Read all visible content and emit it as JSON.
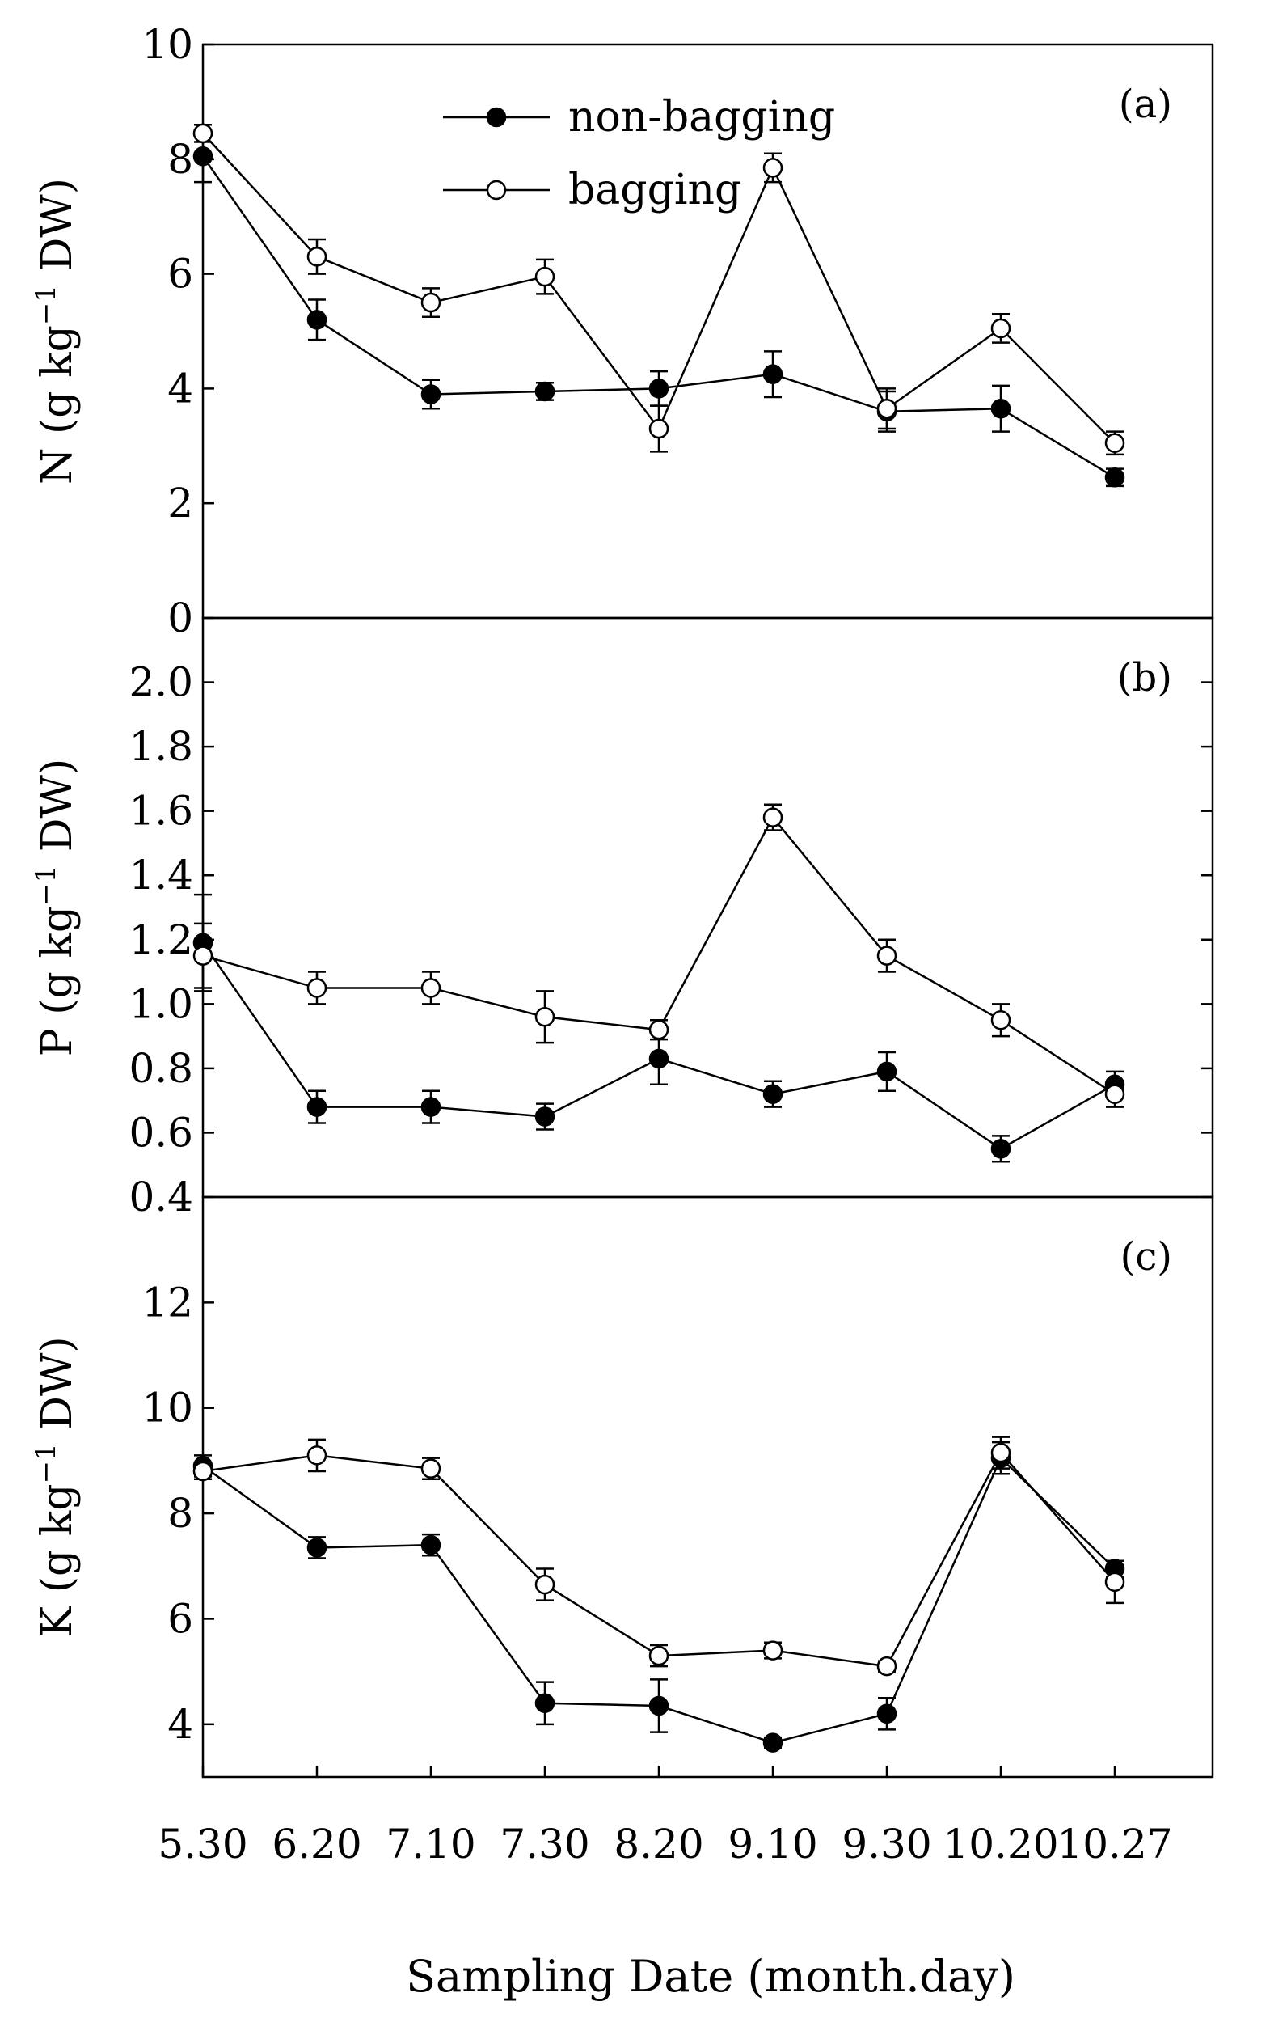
{
  "chart_data": [
    {
      "type": "line",
      "panel_label": "(a)",
      "ylabel": "N (g kg",
      "ylabel_sup": "−1",
      "ylabel_tail": " DW)",
      "ylim": [
        0,
        10
      ],
      "yticks": [
        0,
        2,
        4,
        6,
        8,
        10
      ],
      "ytick_labels": [
        "0",
        "2",
        "4",
        "6",
        "8",
        "10"
      ],
      "legend": [
        "non-bagging",
        "bagging"
      ],
      "legend_position": "top-center",
      "series": [
        {
          "name": "non-bagging",
          "marker": "filled-circle",
          "values": [
            8.05,
            5.2,
            3.9,
            3.95,
            4.0,
            4.25,
            3.6,
            3.65,
            2.45
          ],
          "errors": [
            0.45,
            0.35,
            0.25,
            0.15,
            0.3,
            0.4,
            0.35,
            0.4,
            0.15
          ]
        },
        {
          "name": "bagging",
          "marker": "open-circle",
          "values": [
            8.45,
            6.3,
            5.5,
            5.95,
            3.3,
            7.85,
            3.65,
            5.05,
            3.05
          ],
          "errors": [
            0.15,
            0.3,
            0.25,
            0.3,
            0.4,
            0.25,
            0.35,
            0.25,
            0.2
          ]
        }
      ]
    },
    {
      "type": "line",
      "panel_label": "(b)",
      "ylabel": "P (g kg",
      "ylabel_sup": "−1",
      "ylabel_tail": " DW)",
      "ylim": [
        0.4,
        2.2
      ],
      "yticks": [
        0.4,
        0.6,
        0.8,
        1.0,
        1.2,
        1.4,
        1.6,
        1.8,
        2.0
      ],
      "ytick_labels": [
        "0.4",
        "0.6",
        "0.8",
        "1.0",
        "1.2",
        "1.4",
        "1.6",
        "1.8",
        "2.0"
      ],
      "series": [
        {
          "name": "non-bagging",
          "marker": "filled-circle",
          "values": [
            1.19,
            0.68,
            0.68,
            0.65,
            0.83,
            0.72,
            0.79,
            0.55,
            0.75
          ],
          "errors": [
            0.15,
            0.05,
            0.05,
            0.04,
            0.08,
            0.04,
            0.06,
            0.04,
            0.04
          ]
        },
        {
          "name": "bagging",
          "marker": "open-circle",
          "values": [
            1.15,
            1.05,
            1.05,
            0.96,
            0.92,
            1.58,
            1.15,
            0.95,
            0.72
          ],
          "errors": [
            0.1,
            0.05,
            0.05,
            0.08,
            0.03,
            0.04,
            0.05,
            0.05,
            0.04
          ]
        }
      ]
    },
    {
      "type": "line",
      "panel_label": "(c)",
      "ylabel": "K (g kg",
      "ylabel_sup": "−1",
      "ylabel_tail": " DW)",
      "ylim": [
        3,
        14
      ],
      "yticks": [
        4,
        6,
        8,
        10,
        12
      ],
      "ytick_labels": [
        "4",
        "6",
        "8",
        "10",
        "12"
      ],
      "series": [
        {
          "name": "non-bagging",
          "marker": "filled-circle",
          "values": [
            8.9,
            7.35,
            7.4,
            4.4,
            4.35,
            3.65,
            4.2,
            9.05,
            6.95
          ],
          "errors": [
            0.2,
            0.2,
            0.2,
            0.4,
            0.5,
            0.1,
            0.3,
            0.3,
            0.15
          ]
        },
        {
          "name": "bagging",
          "marker": "open-circle",
          "values": [
            8.8,
            9.1,
            8.85,
            6.65,
            5.3,
            5.4,
            5.1,
            9.15,
            6.7
          ],
          "errors": [
            0.15,
            0.3,
            0.2,
            0.3,
            0.2,
            0.15,
            0.1,
            0.3,
            0.4
          ]
        }
      ]
    }
  ],
  "categories": [
    "5.30",
    "6.20",
    "7.10",
    "7.30",
    "8.20",
    "9.10",
    "9.30",
    "10.20",
    "10.27"
  ],
  "xlabel": "Sampling Date (month.day)"
}
